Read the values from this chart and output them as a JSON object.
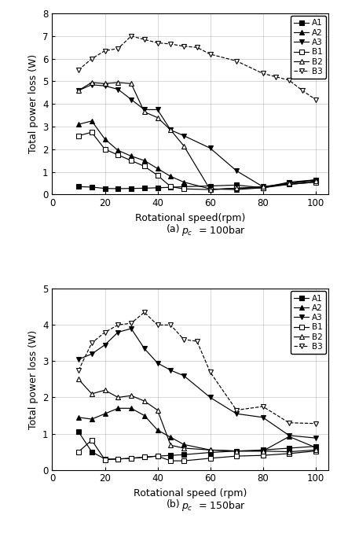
{
  "plot_a": {
    "caption_a": "(a)",
    "caption_b": "$p_c$  = 100bar",
    "xlabel": "Rotational speed(rpm)",
    "ylabel": "Total power loss (W)",
    "ylim": [
      0,
      8
    ],
    "xlim": [
      0,
      105
    ],
    "yticks": [
      0,
      1,
      2,
      3,
      4,
      5,
      6,
      7,
      8
    ],
    "xticks": [
      0,
      20,
      40,
      60,
      80,
      100
    ],
    "series": {
      "A1": {
        "x": [
          10,
          15,
          20,
          25,
          30,
          35,
          40,
          45,
          50,
          60,
          70,
          80,
          90,
          100
        ],
        "y": [
          0.35,
          0.33,
          0.27,
          0.26,
          0.27,
          0.28,
          0.3,
          0.32,
          0.35,
          0.38,
          0.42,
          0.3,
          0.55,
          0.65
        ],
        "marker": "s",
        "filled": true,
        "linestyle": "-"
      },
      "A2": {
        "x": [
          10,
          15,
          20,
          25,
          30,
          35,
          40,
          45,
          50,
          60,
          70,
          80,
          90,
          100
        ],
        "y": [
          3.1,
          3.25,
          2.45,
          1.95,
          1.7,
          1.5,
          1.15,
          0.8,
          0.55,
          0.25,
          0.22,
          0.3,
          0.5,
          0.65
        ],
        "marker": "^",
        "filled": true,
        "linestyle": "-"
      },
      "A3": {
        "x": [
          10,
          15,
          20,
          25,
          30,
          35,
          40,
          45,
          50,
          60,
          70,
          80,
          90,
          100
        ],
        "y": [
          4.6,
          4.85,
          4.8,
          4.65,
          4.2,
          3.75,
          3.75,
          2.85,
          2.6,
          2.05,
          1.05,
          0.35,
          0.45,
          0.55
        ],
        "marker": "v",
        "filled": true,
        "linestyle": "-"
      },
      "B1": {
        "x": [
          10,
          15,
          20,
          25,
          30,
          35,
          40,
          45,
          50,
          60,
          70,
          80,
          90,
          100
        ],
        "y": [
          2.6,
          2.75,
          2.0,
          1.75,
          1.5,
          1.25,
          0.85,
          0.35,
          0.25,
          0.22,
          0.28,
          0.3,
          0.45,
          0.55
        ],
        "marker": "s",
        "filled": false,
        "linestyle": "-"
      },
      "B2": {
        "x": [
          10,
          15,
          20,
          25,
          30,
          35,
          40,
          45,
          50,
          60,
          70,
          80,
          90,
          100
        ],
        "y": [
          4.6,
          4.95,
          4.9,
          4.95,
          4.9,
          3.65,
          3.4,
          2.85,
          2.15,
          0.22,
          0.28,
          0.35,
          0.5,
          0.6
        ],
        "marker": "^",
        "filled": false,
        "linestyle": "-"
      },
      "B3": {
        "x": [
          10,
          15,
          20,
          25,
          30,
          35,
          40,
          45,
          50,
          55,
          60,
          70,
          80,
          85,
          90,
          95,
          100
        ],
        "y": [
          5.5,
          6.0,
          6.35,
          6.45,
          7.0,
          6.85,
          6.7,
          6.65,
          6.55,
          6.5,
          6.2,
          5.9,
          5.35,
          5.2,
          5.05,
          4.6,
          4.2
        ],
        "marker": "v",
        "filled": false,
        "linestyle": "--"
      }
    }
  },
  "plot_b": {
    "caption_a": "(b)",
    "caption_b": "$p_c$  = 150bar",
    "xlabel": "Rotational speed (rpm)",
    "ylabel": "Total power loss (W)",
    "ylim": [
      0,
      5
    ],
    "xlim": [
      0,
      105
    ],
    "yticks": [
      0,
      1,
      2,
      3,
      4,
      5
    ],
    "xticks": [
      0,
      20,
      40,
      60,
      80,
      100
    ],
    "series": {
      "A1": {
        "x": [
          10,
          15,
          20,
          25,
          30,
          35,
          40,
          45,
          50,
          60,
          70,
          80,
          90,
          100
        ],
        "y": [
          1.05,
          0.5,
          0.3,
          0.3,
          0.32,
          0.35,
          0.38,
          0.4,
          0.42,
          0.48,
          0.52,
          0.55,
          0.6,
          0.65
        ],
        "marker": "s",
        "filled": true,
        "linestyle": "-"
      },
      "A2": {
        "x": [
          10,
          15,
          20,
          25,
          30,
          35,
          40,
          45,
          50,
          60,
          70,
          80,
          90,
          100
        ],
        "y": [
          1.45,
          1.4,
          1.55,
          1.7,
          1.7,
          1.5,
          1.1,
          0.9,
          0.7,
          0.55,
          0.52,
          0.52,
          0.92,
          0.62
        ],
        "marker": "^",
        "filled": true,
        "linestyle": "-"
      },
      "A3": {
        "x": [
          10,
          15,
          20,
          25,
          30,
          35,
          40,
          45,
          50,
          60,
          70,
          80,
          90,
          100
        ],
        "y": [
          3.05,
          3.2,
          3.45,
          3.8,
          3.9,
          3.35,
          2.95,
          2.75,
          2.6,
          2.0,
          1.55,
          1.45,
          0.95,
          0.88
        ],
        "marker": "v",
        "filled": true,
        "linestyle": "-"
      },
      "B1": {
        "x": [
          10,
          15,
          20,
          25,
          30,
          35,
          40,
          45,
          50,
          60,
          70,
          80,
          90,
          100
        ],
        "y": [
          0.5,
          0.82,
          0.28,
          0.3,
          0.32,
          0.35,
          0.38,
          0.25,
          0.25,
          0.32,
          0.38,
          0.4,
          0.45,
          0.52
        ],
        "marker": "s",
        "filled": false,
        "linestyle": "-"
      },
      "B2": {
        "x": [
          10,
          15,
          20,
          25,
          30,
          35,
          40,
          45,
          50,
          60,
          70,
          80,
          90,
          100
        ],
        "y": [
          2.5,
          2.1,
          2.2,
          2.0,
          2.05,
          1.9,
          1.65,
          0.68,
          0.6,
          0.55,
          0.52,
          0.52,
          0.5,
          0.55
        ],
        "marker": "^",
        "filled": false,
        "linestyle": "-"
      },
      "B3": {
        "x": [
          10,
          15,
          20,
          25,
          30,
          35,
          40,
          45,
          50,
          55,
          60,
          70,
          80,
          90,
          100
        ],
        "y": [
          2.75,
          3.5,
          3.8,
          4.0,
          4.05,
          4.35,
          4.0,
          4.0,
          3.6,
          3.55,
          2.7,
          1.65,
          1.75,
          1.3,
          1.28
        ],
        "marker": "v",
        "filled": false,
        "linestyle": "--"
      }
    }
  },
  "legend_order": [
    "A1",
    "A2",
    "A3",
    "B1",
    "B2",
    "B3"
  ],
  "line_color": "#000000",
  "marker_size": 4,
  "linewidth": 0.85
}
